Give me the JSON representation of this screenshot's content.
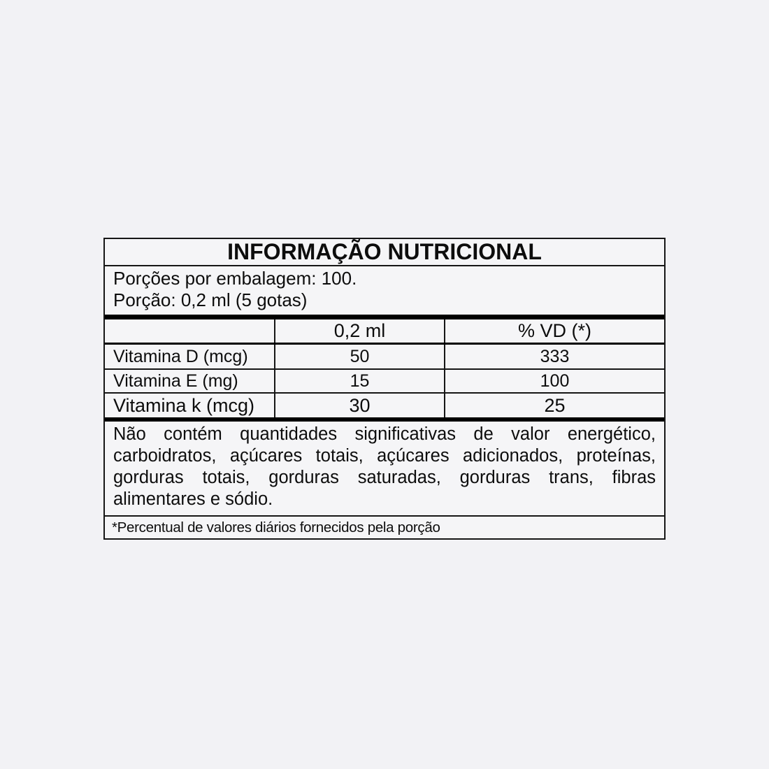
{
  "theme": {
    "page_background": "#f2f2f5",
    "panel_background": "#f5f5f7",
    "border_color": "#161616",
    "text_color": "#0d0d0d"
  },
  "label": {
    "title": "INFORMAÇÃO NUTRICIONAL",
    "servings_per_package": "Porções por embalagem: 100.",
    "serving_size": "Porção: 0,2 ml (5 gotas)",
    "columns": {
      "amount": "0,2 ml",
      "daily_value": "% VD (*)"
    },
    "rows": [
      {
        "nutrient": "Vitamina D (mcg)",
        "amount": "50",
        "daily_value": "333"
      },
      {
        "nutrient": "Vitamina E (mg)",
        "amount": "15",
        "daily_value": "100"
      },
      {
        "nutrient": "Vitamina k (mcg)",
        "amount": "30",
        "daily_value": "25"
      }
    ],
    "note": "Não contém quantidades significativas de valor energético, carboidratos, açúcares totais, açúcares adicionados, proteínas, gorduras totais, gorduras saturadas, gorduras trans, fibras alimentares e sódio.",
    "footnote": "*Percentual de valores diários fornecidos pela porção"
  }
}
